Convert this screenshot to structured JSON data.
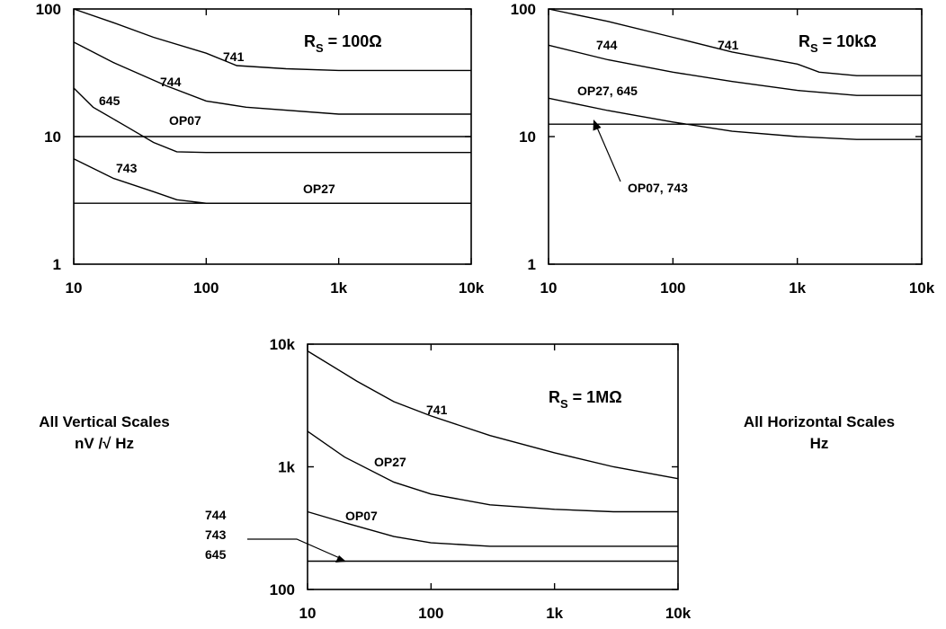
{
  "chart_data": [
    {
      "type": "line",
      "panel": "top-left",
      "x_scale": "log",
      "y_scale": "log",
      "xlim": [
        10,
        10000
      ],
      "ylim": [
        1,
        100
      ],
      "x_ticks": [
        "10",
        "100",
        "1k",
        "10k"
      ],
      "y_ticks": [
        "1",
        "10",
        "100"
      ],
      "rs_prefix": "R",
      "rs_sub": "S",
      "rs_value": " = 100Ω",
      "series": [
        {
          "name": "741",
          "points": [
            [
              10,
              100
            ],
            [
              20,
              78
            ],
            [
              40,
              60
            ],
            [
              100,
              45
            ],
            [
              170,
              36
            ],
            [
              400,
              34
            ],
            [
              1000,
              33
            ],
            [
              10000,
              33
            ]
          ]
        },
        {
          "name": "744",
          "points": [
            [
              10,
              55
            ],
            [
              20,
              38
            ],
            [
              50,
              25
            ],
            [
              100,
              19
            ],
            [
              200,
              17
            ],
            [
              1000,
              15
            ],
            [
              10000,
              15
            ]
          ]
        },
        {
          "name": "645",
          "points": [
            [
              10,
              24
            ],
            [
              14,
              17
            ],
            [
              25,
              12
            ],
            [
              40,
              9
            ],
            [
              60,
              7.6
            ],
            [
              100,
              7.5
            ],
            [
              10000,
              7.5
            ]
          ]
        },
        {
          "name": "OP07",
          "points": [
            [
              10,
              10
            ],
            [
              10000,
              10
            ]
          ]
        },
        {
          "name": "743",
          "points": [
            [
              10,
              6.7
            ],
            [
              20,
              4.7
            ],
            [
              40,
              3.7
            ],
            [
              60,
              3.2
            ],
            [
              100,
              3.0
            ],
            [
              10000,
              3.0
            ]
          ]
        },
        {
          "name": "OP27",
          "points": [
            [
              10,
              3.0
            ],
            [
              10000,
              3.0
            ]
          ]
        }
      ]
    },
    {
      "type": "line",
      "panel": "top-right",
      "x_scale": "log",
      "y_scale": "log",
      "xlim": [
        10,
        10000
      ],
      "ylim": [
        1,
        100
      ],
      "x_ticks": [
        "10",
        "100",
        "1k",
        "10k"
      ],
      "y_ticks": [
        "1",
        "10",
        "100"
      ],
      "rs_prefix": "R",
      "rs_sub": "S",
      "rs_value": " = 10kΩ",
      "series": [
        {
          "name": "741",
          "points": [
            [
              10,
              100
            ],
            [
              30,
              80
            ],
            [
              100,
              60
            ],
            [
              300,
              46
            ],
            [
              1000,
              37
            ],
            [
              1500,
              32
            ],
            [
              3000,
              30
            ],
            [
              10000,
              30
            ]
          ]
        },
        {
          "name": "744",
          "points": [
            [
              10,
              52
            ],
            [
              30,
              40
            ],
            [
              100,
              32
            ],
            [
              300,
              27
            ],
            [
              1000,
              23
            ],
            [
              3000,
              21
            ],
            [
              10000,
              21
            ]
          ]
        },
        {
          "name": "OP27, 645",
          "points": [
            [
              10,
              20
            ],
            [
              30,
              16
            ],
            [
              100,
              13
            ],
            [
              300,
              11
            ],
            [
              1000,
              10
            ],
            [
              3000,
              9.5
            ],
            [
              10000,
              9.5
            ]
          ]
        },
        {
          "name": "OP07, 743",
          "points": [
            [
              10,
              12.5
            ],
            [
              10000,
              12.5
            ]
          ]
        }
      ]
    },
    {
      "type": "line",
      "panel": "bottom",
      "x_scale": "log",
      "y_scale": "log",
      "xlim": [
        10,
        10000
      ],
      "ylim": [
        100,
        10000
      ],
      "x_ticks": [
        "10",
        "100",
        "1k",
        "10k"
      ],
      "y_ticks": [
        "100",
        "1k",
        "10k"
      ],
      "rs_prefix": "R",
      "rs_sub": "S",
      "rs_value": " = 1MΩ",
      "series": [
        {
          "name": "741",
          "points": [
            [
              10,
              8800
            ],
            [
              25,
              5000
            ],
            [
              50,
              3400
            ],
            [
              100,
              2600
            ],
            [
              300,
              1800
            ],
            [
              1000,
              1300
            ],
            [
              3000,
              1000
            ],
            [
              10000,
              800
            ]
          ]
        },
        {
          "name": "OP27",
          "points": [
            [
              10,
              1950
            ],
            [
              20,
              1200
            ],
            [
              50,
              750
            ],
            [
              100,
              600
            ],
            [
              300,
              490
            ],
            [
              1000,
              450
            ],
            [
              3000,
              430
            ],
            [
              10000,
              430
            ]
          ]
        },
        {
          "name": "OP07",
          "points": [
            [
              10,
              430
            ],
            [
              20,
              350
            ],
            [
              50,
              270
            ],
            [
              100,
              240
            ],
            [
              300,
              225
            ],
            [
              10000,
              225
            ]
          ]
        },
        {
          "name": "744 743 645",
          "points": [
            [
              10,
              170
            ],
            [
              10000,
              170
            ]
          ]
        }
      ]
    }
  ],
  "notes": {
    "vertical_line1": "All Vertical Scales",
    "vertical_line2": "nV /√ Hz",
    "horizontal_line1": "All Horizontal Scales",
    "horizontal_line2": "Hz"
  },
  "labels": {
    "tl_741": "741",
    "tl_744": "744",
    "tl_645": "645",
    "tl_op07": "OP07",
    "tl_743": "743",
    "tl_op27": "OP27",
    "tr_744": "744",
    "tr_741": "741",
    "tr_op27_645": "OP27, 645",
    "tr_op07_743": "OP07, 743",
    "b_741": "741",
    "b_op27": "OP27",
    "b_op07": "OP07",
    "b_744": "744",
    "b_743": "743",
    "b_645": "645"
  }
}
